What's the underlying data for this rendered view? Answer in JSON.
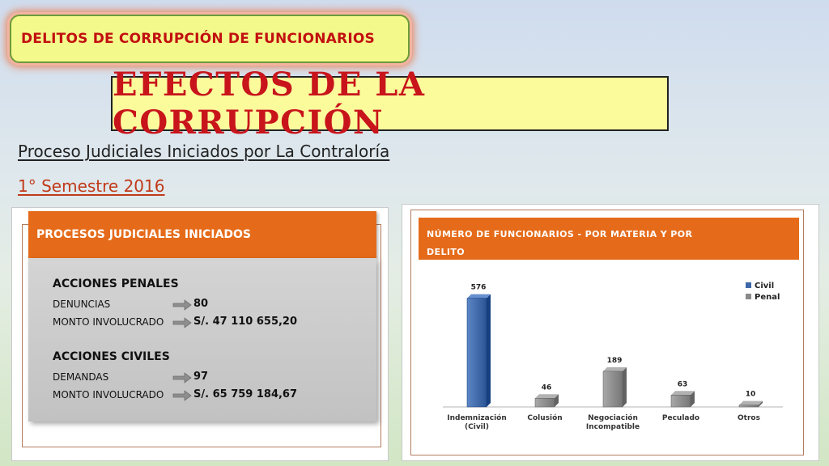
{
  "subject_badge": "DELITOS DE CORRUPCIÓN DE FUNCIONARIOS",
  "title": "EFECTOS DE LA CORRUPCIÓN",
  "subtitle": "Proceso Judiciales Iniciados por La Contraloría",
  "semester": "1° Semestre 2016",
  "left_panel": {
    "header": "PROCESOS JUDICIALES INICIADOS",
    "sections": [
      {
        "title": "ACCIONES PENALES",
        "rows": [
          {
            "label": "DENUNCIAS",
            "value": "80"
          },
          {
            "label": "MONTO INVOLUCRADO",
            "value": "S/. 47 110 655,20"
          }
        ]
      },
      {
        "title": "ACCIONES CIVILES",
        "rows": [
          {
            "label": "DEMANDAS",
            "value": "97"
          },
          {
            "label": "MONTO INVOLUCRADO",
            "value": "S/. 65 759 184,67"
          }
        ]
      }
    ]
  },
  "right_panel": {
    "header_line1": "NÚMERO DE FUNCIONARIOS  -  POR MATERIA Y  POR",
    "header_line2": "DELITO"
  },
  "chart_data": {
    "type": "bar",
    "categories": [
      "Indemnización\n(Civil)",
      "Colusión",
      "Negociación\nIncompatible",
      "Peculado",
      "Otros"
    ],
    "series": [
      {
        "name": "Civil",
        "color": "#3e68a8",
        "values": [
          576,
          null,
          null,
          null,
          null
        ]
      },
      {
        "name": "Penal",
        "color": "#8a8a8a",
        "values": [
          null,
          46,
          189,
          63,
          10
        ]
      }
    ],
    "data_labels": [
      "576",
      "46",
      "189",
      "63",
      "10"
    ],
    "ylim": [
      0,
      600
    ],
    "grid": false,
    "legend": "top-right"
  },
  "colors": {
    "accent_orange": "#e56b1a",
    "title_red": "#c8141b",
    "civil_blue": "#3e68a8",
    "penal_gray": "#8a8a8a"
  }
}
